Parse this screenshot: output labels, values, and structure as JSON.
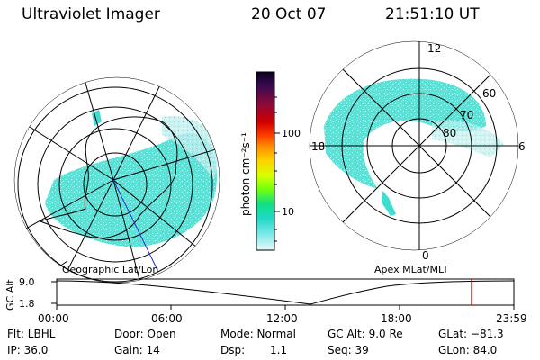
{
  "header": {
    "instrument": "Ultraviolet Imager",
    "date": "20 Oct 07",
    "time": "21:51:10 UT"
  },
  "left_panel": {
    "caption": "Geographic Lat/Lon"
  },
  "right_panel": {
    "caption": "Apex MLat/MLT",
    "mlt_labels": [
      "12",
      "18",
      "6",
      "0"
    ],
    "lat_labels": [
      "60",
      "70",
      "80"
    ]
  },
  "colorbar": {
    "unit_label": "photon cm⁻²s⁻¹",
    "ticks": [
      "100",
      "10"
    ],
    "scale": "log",
    "colors": [
      "#1a0033",
      "#4a0a50",
      "#8b0a3a",
      "#c00000",
      "#ff2000",
      "#ff8c00",
      "#ffd000",
      "#e0ff00",
      "#80ff00",
      "#00e080",
      "#00d0c0",
      "#40e0e0",
      "#b0f0f0",
      "#e8f8f8"
    ]
  },
  "altitude_plot": {
    "ylabel": "GC Alt",
    "y_ticks": [
      "9.0",
      "1.8"
    ],
    "x_ticks": [
      "00:00",
      "06:00",
      "12:00",
      "18:00",
      "23:59"
    ],
    "current_marker_color": "#cc0000"
  },
  "footer": {
    "flt": "Flt: LBHL",
    "door": "Door: Open",
    "mode": "Mode: Normal",
    "gcalt": "GC Alt: 9.0 Re",
    "glat": "GLat: −81.3",
    "ip": "IP: 36.0",
    "gain": "Gain: 14",
    "dsp_label": "Dsp:",
    "dsp_value": "1.1",
    "seq": "Seq: 39",
    "glon": "GLon:  84.0"
  },
  "colors": {
    "aurora": "#40e0d0",
    "aurora_light": "#a8ecec",
    "grid": "#000000"
  }
}
